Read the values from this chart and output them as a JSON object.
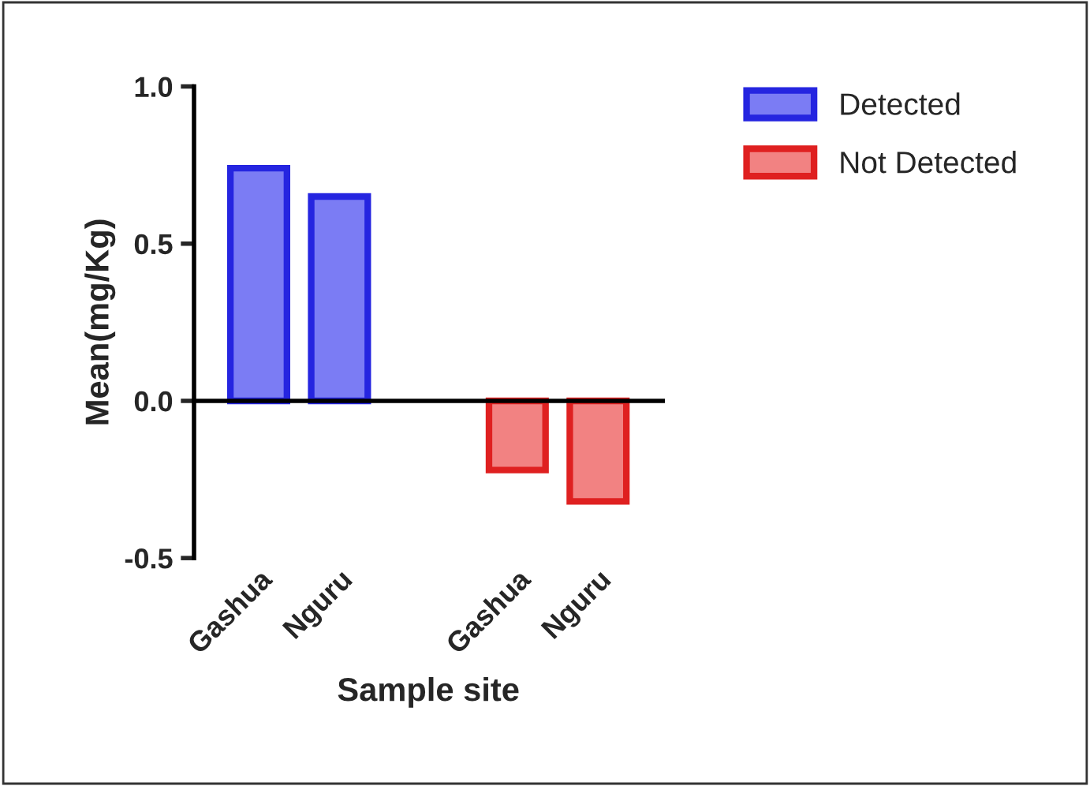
{
  "chart_data": {
    "type": "bar",
    "xlabel": "Sample site",
    "ylabel": "Mean(mg/Kg)",
    "categories": [
      "Gashua",
      "Nguru",
      "Gashua",
      "Nguru"
    ],
    "series": [
      {
        "name": "Detected",
        "color": "#7b7cf4",
        "values": [
          0.74,
          0.65,
          null,
          null
        ]
      },
      {
        "name": "Not Detected",
        "color": "#f28282",
        "values": [
          null,
          null,
          -0.22,
          -0.32
        ]
      }
    ],
    "ylim": [
      -0.5,
      1.0
    ],
    "yticks": [
      -0.5,
      {
        "value": 0,
        "label": "0.0"
      },
      0.5,
      {
        "value": 1,
        "label": "1.0"
      }
    ],
    "legend": "top right"
  }
}
